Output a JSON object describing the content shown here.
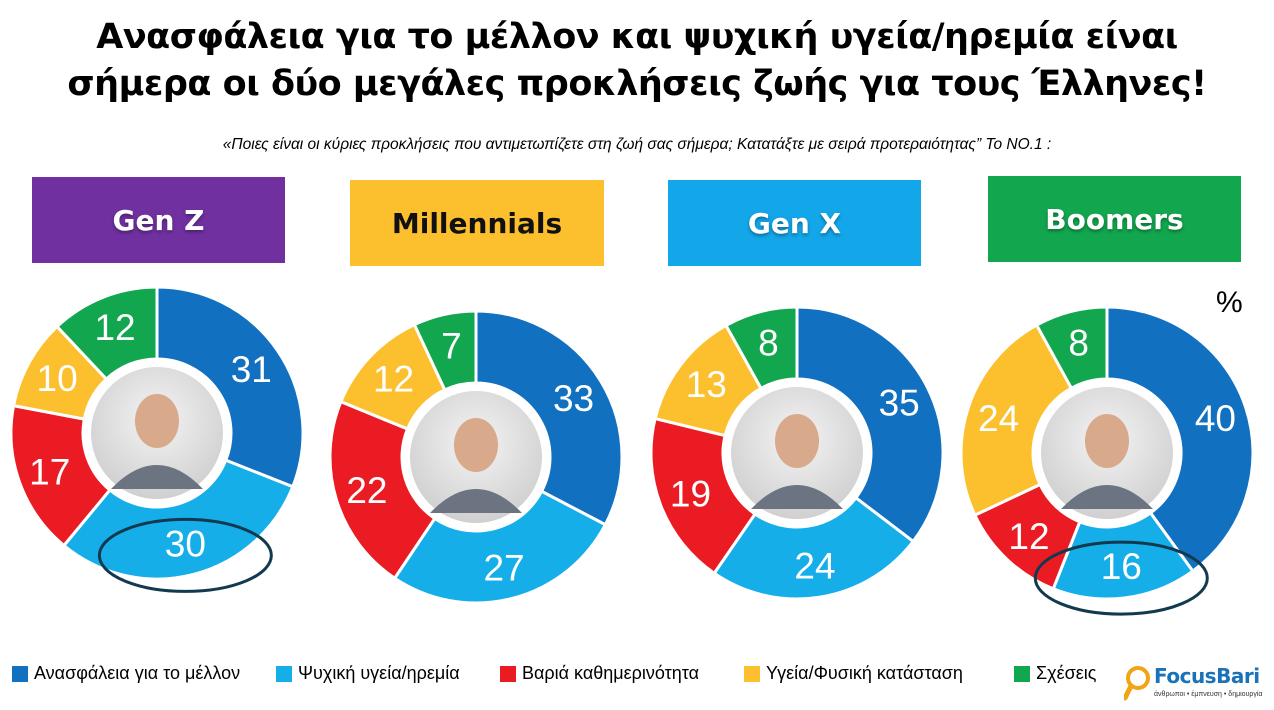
{
  "title_line1": "Ανασφάλεια για το μέλλον και ψυχική υγεία/ηρεμία είναι",
  "title_line2": "σήμερα οι δύο μεγάλες προκλήσεις ζωής για τους Έλληνες!",
  "subtitle": "«Ποιες είναι οι κύριες προκλήσεις που αντιμετωπίζετε στη ζωή σας σήμερα; Κατατάξτε με σειρά προτεραιότητας” Το ΝΟ.1 :",
  "unit_label": "%",
  "generations": [
    {
      "label": "Gen Z",
      "color": "#7030a0"
    },
    {
      "label": "Millennials",
      "color": "#fcc02e"
    },
    {
      "label": "Gen X",
      "color": "#13a6e8"
    },
    {
      "label": "Boomers",
      "color": "#12a64e"
    }
  ],
  "legend": [
    {
      "label": "Ανασφάλεια για το μέλλον",
      "color": "#1170c0"
    },
    {
      "label": "Ψυχική υγεία/ηρεμία",
      "color": "#15aee9"
    },
    {
      "label": "Βαριά καθημερινότητα",
      "color": "#ea1b23"
    },
    {
      "label": "Υγεία/Φυσική κατάσταση",
      "color": "#fcc02e"
    },
    {
      "label": "Σχέσεις",
      "color": "#12a64e"
    }
  ],
  "logo": {
    "name": "FocusBari",
    "tagline": "άνθρωποι • έμπνευση • δημιουργία"
  },
  "chart_data": [
    {
      "type": "pie",
      "title": "Gen Z",
      "categories": [
        "Ανασφάλεια για το μέλλον",
        "Ψυχική υγεία/ηρεμία",
        "Βαριά καθημερινότητα",
        "Υγεία/Φυσική κατάσταση",
        "Σχέσεις"
      ],
      "values": [
        31,
        30,
        17,
        10,
        12
      ],
      "highlight": "Ψυχική υγεία/ηρεμία"
    },
    {
      "type": "pie",
      "title": "Millennials",
      "categories": [
        "Ανασφάλεια για το μέλλον",
        "Ψυχική υγεία/ηρεμία",
        "Βαριά καθημερινότητα",
        "Υγεία/Φυσική κατάσταση",
        "Σχέσεις"
      ],
      "values": [
        33,
        27,
        22,
        12,
        7
      ]
    },
    {
      "type": "pie",
      "title": "Gen X",
      "categories": [
        "Ανασφάλεια για το μέλλον",
        "Ψυχική υγεία/ηρεμία",
        "Βαριά καθημερινότητα",
        "Υγεία/Φυσική κατάσταση",
        "Σχέσεις"
      ],
      "values": [
        35,
        24,
        19,
        13,
        8
      ]
    },
    {
      "type": "pie",
      "title": "Boomers",
      "categories": [
        "Ανασφάλεια για το μέλλον",
        "Ψυχική υγεία/ηρεμία",
        "Βαριά καθημερινότητα",
        "Υγεία/Φυσική κατάσταση",
        "Σχέσεις"
      ],
      "values": [
        40,
        16,
        12,
        24,
        8
      ],
      "highlight": "Ψυχική υγεία/ηρεμία"
    }
  ]
}
